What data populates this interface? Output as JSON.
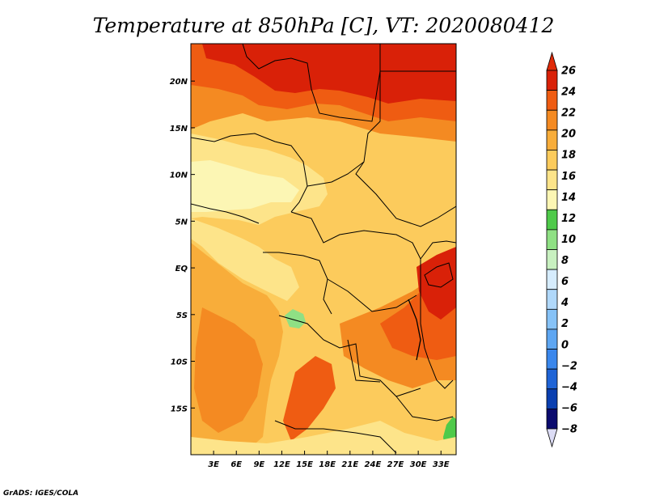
{
  "chart_data": {
    "type": "heatmap",
    "title": "Temperature at 850hPa [C], VT: 2020080412",
    "variable": "Temperature at 850hPa",
    "units": "C",
    "valid_time": "2020080412",
    "credit": "GrADS: IGES/COLA",
    "lon_range": [
      0,
      35
    ],
    "lat_range": [
      -20,
      24
    ],
    "x_ticks": [
      {
        "value": 3,
        "label": "3E"
      },
      {
        "value": 6,
        "label": "6E"
      },
      {
        "value": 9,
        "label": "9E"
      },
      {
        "value": 12,
        "label": "12E"
      },
      {
        "value": 15,
        "label": "15E"
      },
      {
        "value": 18,
        "label": "18E"
      },
      {
        "value": 21,
        "label": "21E"
      },
      {
        "value": 24,
        "label": "24E"
      },
      {
        "value": 27,
        "label": "27E"
      },
      {
        "value": 30,
        "label": "30E"
      },
      {
        "value": 33,
        "label": "33E"
      }
    ],
    "y_ticks": [
      {
        "value": 20,
        "label": "20N"
      },
      {
        "value": 15,
        "label": "15N"
      },
      {
        "value": 10,
        "label": "10N"
      },
      {
        "value": 5,
        "label": "5N"
      },
      {
        "value": 0,
        "label": "EQ"
      },
      {
        "value": -5,
        "label": "5S"
      },
      {
        "value": -10,
        "label": "10S"
      },
      {
        "value": -15,
        "label": "15S"
      }
    ],
    "colorbar": {
      "levels": [
        -8,
        -6,
        -4,
        -2,
        0,
        2,
        4,
        6,
        8,
        10,
        12,
        14,
        16,
        18,
        20,
        22,
        24,
        26
      ],
      "labels": [
        "26",
        "24",
        "22",
        "20",
        "18",
        "16",
        "14",
        "12",
        "10",
        "8",
        "6",
        "4",
        "2",
        "0",
        "−2",
        "−4",
        "−6",
        "−8"
      ],
      "colors": [
        "#0b0b6e",
        "#0a3fb0",
        "#1f64d6",
        "#3a87ec",
        "#5ea6f2",
        "#86c2f7",
        "#b0d8fa",
        "#d6ecfd",
        "#c8f0c0",
        "#8fe084",
        "#4fca4a",
        "#fcf6b4",
        "#fde48a",
        "#fccb5c",
        "#f8ad3a",
        "#f48a22",
        "#ef5c12",
        "#d92108"
      ],
      "under_color": "#dcdcf5",
      "over_color": "#e02a08"
    }
  }
}
